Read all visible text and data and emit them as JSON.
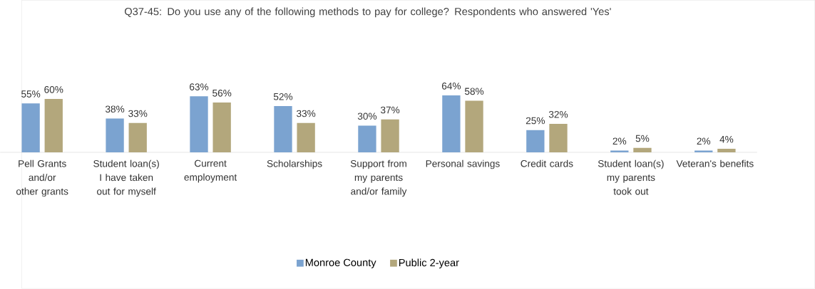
{
  "chart_data": {
    "type": "bar",
    "title": "Q37-45: Do you use any of the following methods to pay for college? Respondents who answered 'Yes'",
    "categories": [
      "Pell Grants and/or other grants",
      "Student loan(s) I have taken out for myself",
      "Current employment",
      "Scholarships",
      "Support from my parents and/or family",
      "Personal savings",
      "Credit cards",
      "Student loan(s) my parents took out",
      "Veteran's benefits"
    ],
    "series": [
      {
        "name": "Monroe County",
        "color": "#7ba3d0",
        "values": [
          55,
          38,
          63,
          52,
          30,
          64,
          25,
          2,
          2
        ],
        "value_labels": [
          "55%",
          "38%",
          "63%",
          "52%",
          "30%",
          "64%",
          "25%",
          "2%",
          "2%"
        ]
      },
      {
        "name": "Public 2-year",
        "color": "#b3a77c",
        "values": [
          60,
          33,
          56,
          33,
          37,
          58,
          32,
          5,
          4
        ],
        "value_labels": [
          "60%",
          "33%",
          "56%",
          "33%",
          "37%",
          "58%",
          "32%",
          "5%",
          "4%"
        ]
      }
    ],
    "legend": "bottom"
  }
}
